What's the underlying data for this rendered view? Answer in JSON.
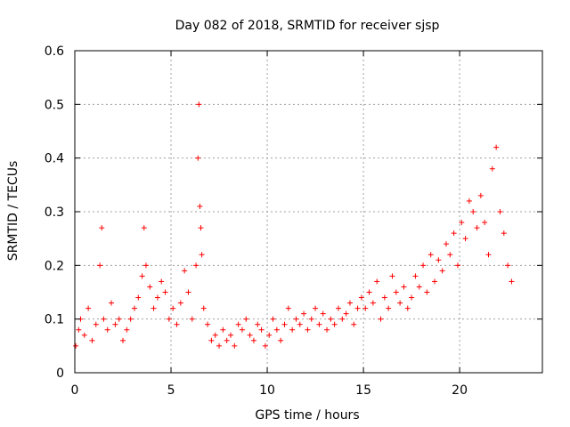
{
  "chart_data": {
    "type": "scatter",
    "title": "Day 082 of 2018, SRMTID for receiver sjsp",
    "xlabel": "GPS time / hours",
    "ylabel": "SRMTID / TECUs",
    "xlim": [
      0,
      24.3
    ],
    "ylim": [
      0,
      0.6
    ],
    "xticks": [
      0,
      5,
      10,
      15,
      20
    ],
    "xtick_labels": [
      "0",
      "5",
      "10",
      "15",
      "20"
    ],
    "yticks": [
      0,
      0.1,
      0.2,
      0.3,
      0.4,
      0.5,
      0.6
    ],
    "ytick_labels": [
      "0",
      "0.1",
      "0.2",
      "0.3",
      "0.4",
      "0.5",
      "0.6"
    ],
    "grid": true,
    "marker": "+",
    "color": "#ff0000",
    "series": [
      {
        "name": "SRMTID",
        "x": [
          0.05,
          0.2,
          0.3,
          0.5,
          0.7,
          0.9,
          1.1,
          1.3,
          1.4,
          1.5,
          1.7,
          1.9,
          2.1,
          2.3,
          2.5,
          2.7,
          2.9,
          3.1,
          3.3,
          3.5,
          3.6,
          3.7,
          3.9,
          4.1,
          4.3,
          4.5,
          4.7,
          4.9,
          5.1,
          5.3,
          5.5,
          5.7,
          5.9,
          6.1,
          6.3,
          6.4,
          6.45,
          6.5,
          6.55,
          6.6,
          6.7,
          6.9,
          7.1,
          7.3,
          7.5,
          7.7,
          7.9,
          8.1,
          8.3,
          8.5,
          8.7,
          8.9,
          9.1,
          9.3,
          9.5,
          9.7,
          9.9,
          10.1,
          10.3,
          10.5,
          10.7,
          10.9,
          11.1,
          11.3,
          11.5,
          11.7,
          11.9,
          12.1,
          12.3,
          12.5,
          12.7,
          12.9,
          13.1,
          13.3,
          13.5,
          13.7,
          13.9,
          14.1,
          14.3,
          14.5,
          14.7,
          14.9,
          15.1,
          15.3,
          15.5,
          15.7,
          15.9,
          16.1,
          16.3,
          16.5,
          16.7,
          16.9,
          17.1,
          17.3,
          17.5,
          17.7,
          17.9,
          18.1,
          18.3,
          18.5,
          18.7,
          18.9,
          19.1,
          19.3,
          19.5,
          19.7,
          19.9,
          20.1,
          20.3,
          20.5,
          20.7,
          20.9,
          21.1,
          21.3,
          21.5,
          21.7,
          21.9,
          22.1,
          22.3,
          22.5,
          22.7
        ],
        "y": [
          0.05,
          0.08,
          0.1,
          0.07,
          0.12,
          0.06,
          0.09,
          0.2,
          0.27,
          0.1,
          0.08,
          0.13,
          0.09,
          0.1,
          0.06,
          0.08,
          0.1,
          0.12,
          0.14,
          0.18,
          0.27,
          0.2,
          0.16,
          0.12,
          0.14,
          0.17,
          0.15,
          0.1,
          0.12,
          0.09,
          0.13,
          0.19,
          0.15,
          0.1,
          0.2,
          0.4,
          0.5,
          0.31,
          0.27,
          0.22,
          0.12,
          0.09,
          0.06,
          0.07,
          0.05,
          0.08,
          0.06,
          0.07,
          0.05,
          0.09,
          0.08,
          0.1,
          0.07,
          0.06,
          0.09,
          0.08,
          0.05,
          0.07,
          0.1,
          0.08,
          0.06,
          0.09,
          0.12,
          0.08,
          0.1,
          0.09,
          0.11,
          0.08,
          0.1,
          0.12,
          0.09,
          0.11,
          0.08,
          0.1,
          0.09,
          0.12,
          0.1,
          0.11,
          0.13,
          0.09,
          0.12,
          0.14,
          0.12,
          0.15,
          0.13,
          0.17,
          0.1,
          0.14,
          0.12,
          0.18,
          0.15,
          0.13,
          0.16,
          0.12,
          0.14,
          0.18,
          0.16,
          0.2,
          0.15,
          0.22,
          0.17,
          0.21,
          0.19,
          0.24,
          0.22,
          0.26,
          0.2,
          0.28,
          0.25,
          0.32,
          0.3,
          0.27,
          0.33,
          0.28,
          0.22,
          0.38,
          0.42,
          0.3,
          0.26,
          0.2,
          0.17
        ]
      }
    ]
  }
}
